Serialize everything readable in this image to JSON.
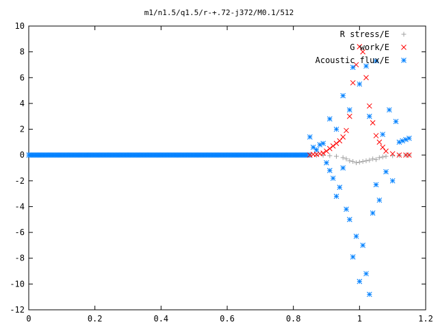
{
  "chart_data": {
    "type": "scatter",
    "title": "m1/n1.5/q1.5/r-+.72-j372/M0.1/512",
    "xlabel": "",
    "ylabel": "",
    "xlim": [
      0,
      1.2
    ],
    "ylim": [
      -12,
      10
    ],
    "grid": false,
    "legend_position": "top-right",
    "x_ticks": [
      "0",
      "0.2",
      "0.4",
      "0.6",
      "0.8",
      "1",
      "1.2"
    ],
    "y_ticks": [
      "10",
      "8",
      "6",
      "4",
      "2",
      "0",
      "-2",
      "-4",
      "-6",
      "-8",
      "-10",
      "-12"
    ],
    "series": [
      {
        "name": "R stress/E",
        "marker": "plus",
        "color": "#a0a0a0",
        "points": [
          [
            0.85,
            0.0
          ],
          [
            0.87,
            -0.01
          ],
          [
            0.89,
            -0.02
          ],
          [
            0.91,
            -0.05
          ],
          [
            0.93,
            -0.1
          ],
          [
            0.95,
            -0.2
          ],
          [
            0.96,
            -0.3
          ],
          [
            0.97,
            -0.45
          ],
          [
            0.98,
            -0.5
          ],
          [
            0.99,
            -0.6
          ],
          [
            1.0,
            -0.55
          ],
          [
            1.01,
            -0.5
          ],
          [
            1.02,
            -0.45
          ],
          [
            1.03,
            -0.4
          ],
          [
            1.04,
            -0.3
          ],
          [
            1.05,
            -0.35
          ],
          [
            1.06,
            -0.2
          ],
          [
            1.07,
            -0.15
          ],
          [
            1.08,
            -0.1
          ],
          [
            1.1,
            -0.05
          ],
          [
            1.12,
            -0.02
          ],
          [
            1.14,
            0.0
          ],
          [
            1.15,
            0.0
          ]
        ]
      },
      {
        "name": "G work/E",
        "marker": "cross",
        "color": "#ff0000",
        "points": [
          [
            0.85,
            0.0
          ],
          [
            0.86,
            0.05
          ],
          [
            0.87,
            0.05
          ],
          [
            0.88,
            0.1
          ],
          [
            0.89,
            0.15
          ],
          [
            0.9,
            0.3
          ],
          [
            0.91,
            0.5
          ],
          [
            0.92,
            0.7
          ],
          [
            0.93,
            0.9
          ],
          [
            0.94,
            1.1
          ],
          [
            0.95,
            1.4
          ],
          [
            0.96,
            1.9
          ],
          [
            0.97,
            3.0
          ],
          [
            0.98,
            5.6
          ],
          [
            0.99,
            7.0
          ],
          [
            1.0,
            8.4
          ],
          [
            1.01,
            8.0
          ],
          [
            1.02,
            6.0
          ],
          [
            1.03,
            3.8
          ],
          [
            1.04,
            2.5
          ],
          [
            1.05,
            1.5
          ],
          [
            1.06,
            1.0
          ],
          [
            1.07,
            0.6
          ],
          [
            1.08,
            0.3
          ],
          [
            1.1,
            0.1
          ],
          [
            1.12,
            0.0
          ],
          [
            1.14,
            0.0
          ],
          [
            1.15,
            0.0
          ]
        ]
      },
      {
        "name": "Acoustic flux/E",
        "marker": "star",
        "color": "#0080ff",
        "points": [
          [
            0.85,
            1.4
          ],
          [
            0.86,
            0.6
          ],
          [
            0.87,
            0.4
          ],
          [
            0.88,
            0.8
          ],
          [
            0.89,
            0.9
          ],
          [
            0.9,
            -0.6
          ],
          [
            0.91,
            -1.2
          ],
          [
            0.91,
            2.8
          ],
          [
            0.92,
            -1.8
          ],
          [
            0.93,
            -3.2
          ],
          [
            0.93,
            2.0
          ],
          [
            0.94,
            -2.5
          ],
          [
            0.95,
            -1.0
          ],
          [
            0.95,
            4.6
          ],
          [
            0.96,
            -4.2
          ],
          [
            0.97,
            3.5
          ],
          [
            0.97,
            -5.0
          ],
          [
            0.98,
            -7.9
          ],
          [
            0.98,
            6.8
          ],
          [
            0.99,
            -6.3
          ],
          [
            1.0,
            -9.8
          ],
          [
            1.0,
            5.5
          ],
          [
            1.01,
            -7.0
          ],
          [
            1.02,
            -9.2
          ],
          [
            1.02,
            6.9
          ],
          [
            1.03,
            -10.8
          ],
          [
            1.03,
            3.0
          ],
          [
            1.04,
            -4.5
          ],
          [
            1.05,
            7.3
          ],
          [
            1.05,
            -2.3
          ],
          [
            1.06,
            -3.5
          ],
          [
            1.07,
            1.6
          ],
          [
            1.08,
            -1.3
          ],
          [
            1.09,
            3.5
          ],
          [
            1.1,
            -2.0
          ],
          [
            1.11,
            2.6
          ],
          [
            1.12,
            1.0
          ],
          [
            1.13,
            1.1
          ],
          [
            1.14,
            1.2
          ],
          [
            1.15,
            1.3
          ]
        ]
      }
    ]
  }
}
